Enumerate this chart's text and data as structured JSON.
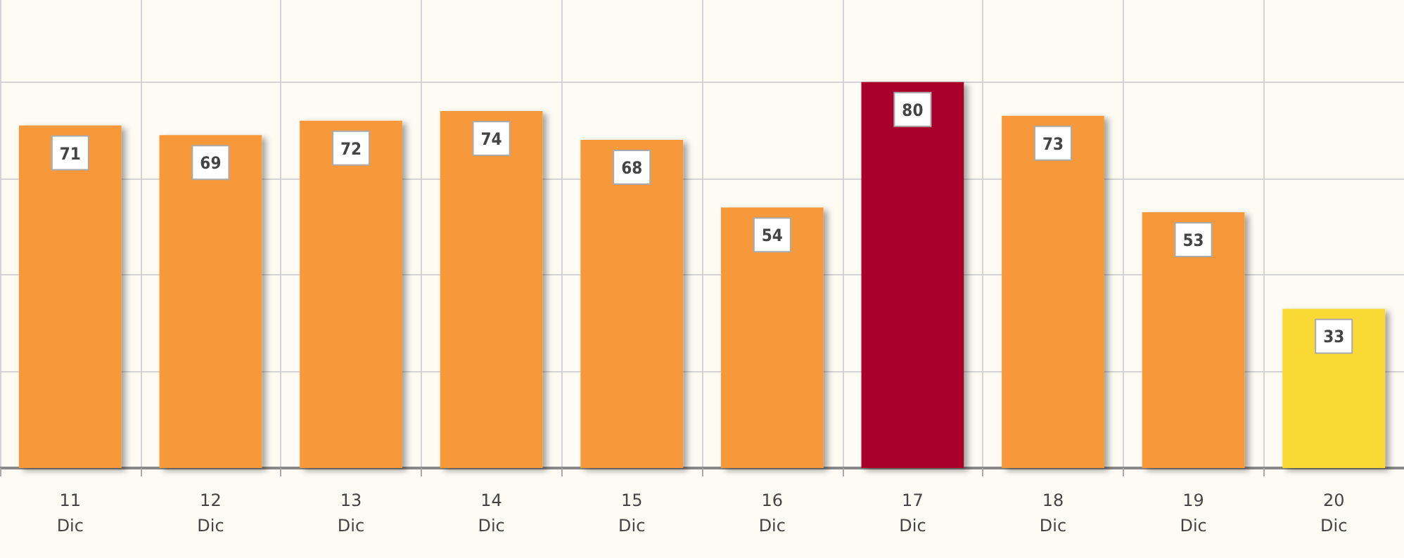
{
  "chart_data": {
    "type": "bar",
    "categories": [
      "11\nDic",
      "12\nDic",
      "13\nDic",
      "14\nDic",
      "15\nDic",
      "16\nDic",
      "17\nDic",
      "18\nDic",
      "19\nDic",
      "20\nDic"
    ],
    "values": [
      71,
      69,
      72,
      74,
      68,
      54,
      80,
      73,
      53,
      33
    ],
    "colors": [
      "#f7993a",
      "#f7993a",
      "#f7993a",
      "#f7993a",
      "#f7993a",
      "#f7993a",
      "#a8002a",
      "#f7993a",
      "#f7993a",
      "#fbd935"
    ],
    "ylim": [
      0,
      97
    ],
    "yticks": [
      {
        "value": 0,
        "label": null
      },
      {
        "value": 20,
        "label": null
      },
      {
        "value": 40,
        "label": null
      },
      {
        "value": 60,
        "label": null
      },
      {
        "value": 80,
        "label": null
      }
    ],
    "tick_labels": "x",
    "grid": true,
    "data_labels": true
  }
}
